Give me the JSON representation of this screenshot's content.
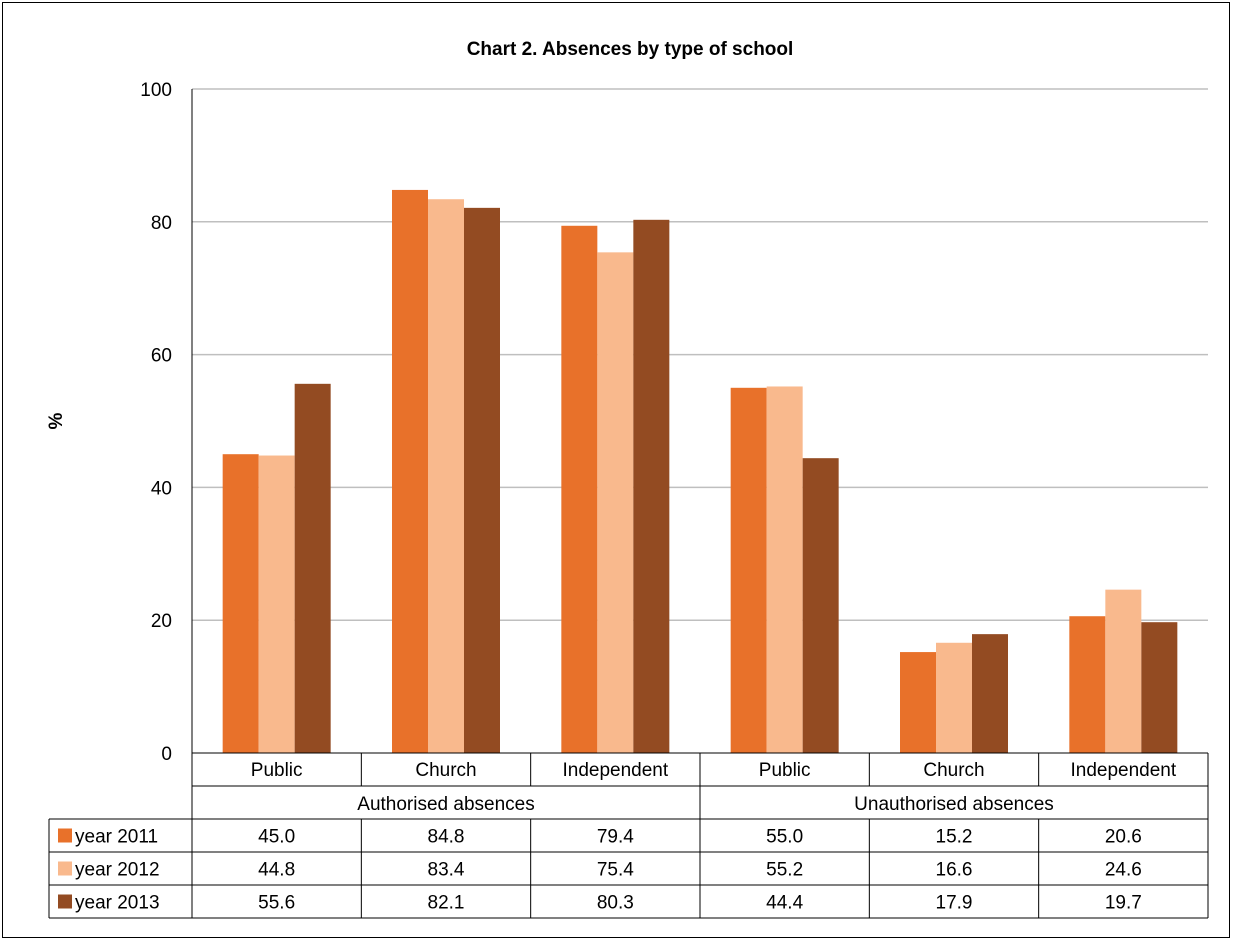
{
  "chart_data": {
    "type": "bar",
    "title": "Chart 2. Absences by type of school",
    "ylabel": "%",
    "xlabel": "",
    "ylim": [
      0,
      100
    ],
    "yticks": [
      0,
      20,
      40,
      60,
      80,
      100
    ],
    "grid": true,
    "legend_placement": "data-table",
    "groups": [
      {
        "label": "Authorised absences",
        "categories": [
          "Public",
          "Church",
          "Independent"
        ]
      },
      {
        "label": "Unauthorised absences",
        "categories": [
          "Public",
          "Church",
          "Independent"
        ]
      }
    ],
    "series": [
      {
        "name": "year 2011",
        "color": "#E8712A",
        "values": [
          45.0,
          84.8,
          79.4,
          55.0,
          15.2,
          20.6
        ]
      },
      {
        "name": "year 2012",
        "color": "#F9B98D",
        "values": [
          44.8,
          83.4,
          75.4,
          55.2,
          16.6,
          24.6
        ]
      },
      {
        "name": "year 2013",
        "color": "#934B22",
        "values": [
          55.6,
          82.1,
          80.3,
          44.4,
          17.9,
          19.7
        ]
      }
    ]
  }
}
